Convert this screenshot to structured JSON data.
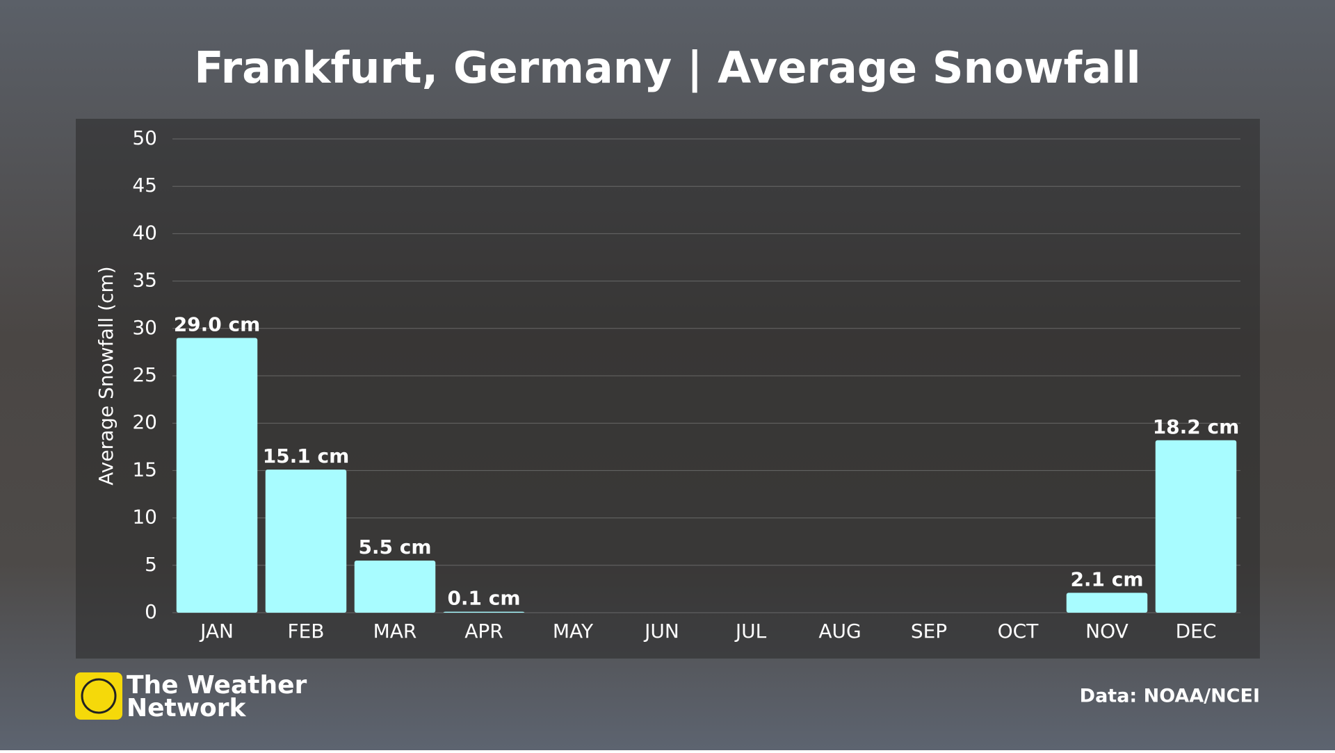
{
  "chart_data": {
    "type": "bar",
    "title": "Frankfurt, Germany | Average Snowfall",
    "y_label": "Average Snowfall (cm)",
    "categories": [
      "JAN",
      "FEB",
      "MAR",
      "APR",
      "MAY",
      "JUN",
      "JUL",
      "AUG",
      "SEP",
      "OCT",
      "NOV",
      "DEC"
    ],
    "values": [
      29.0,
      15.1,
      5.5,
      0.1,
      0,
      0,
      0,
      0,
      0,
      0,
      2.1,
      18.2
    ],
    "value_labels": [
      "29.0 cm",
      "15.1 cm",
      "5.5 cm",
      "0.1 cm",
      null,
      null,
      null,
      null,
      null,
      null,
      "2.1 cm",
      "18.2 cm"
    ],
    "color": "#a8fcff",
    "ylim": [
      0,
      50
    ],
    "yticks": [
      0,
      5,
      10,
      15,
      20,
      25,
      30,
      35,
      40,
      45,
      50
    ],
    "grid": true,
    "source": "Data: NOAA/NCEI"
  },
  "logo": {
    "lines": [
      "The Weather",
      "Network"
    ]
  }
}
